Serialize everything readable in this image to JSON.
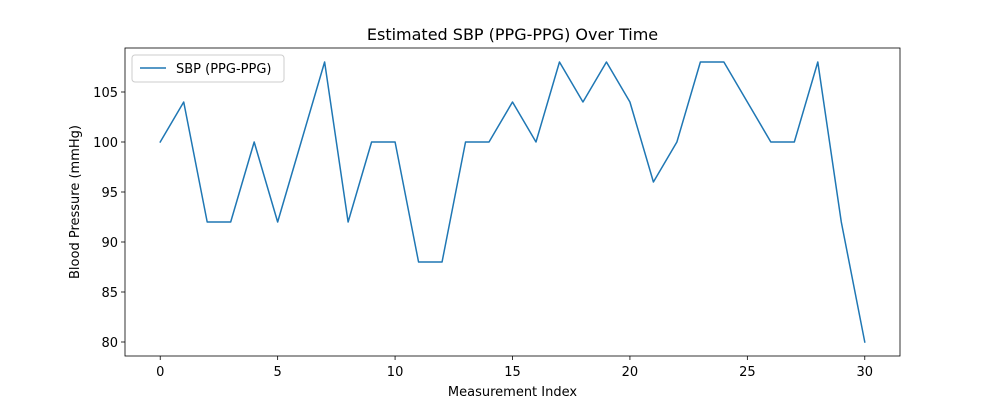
{
  "chart_data": {
    "type": "line",
    "title": "Estimated SBP (PPG-PPG) Over Time",
    "xlabel": "Measurement Index",
    "ylabel": "Blood Pressure (mmHg)",
    "xlim": [
      -1.5,
      31.5
    ],
    "ylim": [
      78.6,
      109.4
    ],
    "xticks": [
      0,
      5,
      10,
      15,
      20,
      25,
      30
    ],
    "yticks": [
      80,
      85,
      90,
      95,
      100,
      105
    ],
    "grid": false,
    "legend_position": "upper-left",
    "series": [
      {
        "name": "SBP (PPG-PPG)",
        "color": "#1f77b4",
        "x": [
          0,
          1,
          2,
          3,
          4,
          5,
          6,
          7,
          8,
          9,
          10,
          11,
          12,
          13,
          14,
          15,
          16,
          17,
          18,
          19,
          20,
          21,
          22,
          23,
          24,
          25,
          26,
          27,
          28,
          29,
          30
        ],
        "values": [
          100,
          104,
          92,
          92,
          100,
          92,
          100,
          108,
          92,
          100,
          100,
          88,
          88,
          100,
          100,
          104,
          100,
          108,
          104,
          108,
          104,
          96,
          100,
          108,
          108,
          104,
          100,
          100,
          108,
          92,
          80
        ]
      }
    ]
  }
}
